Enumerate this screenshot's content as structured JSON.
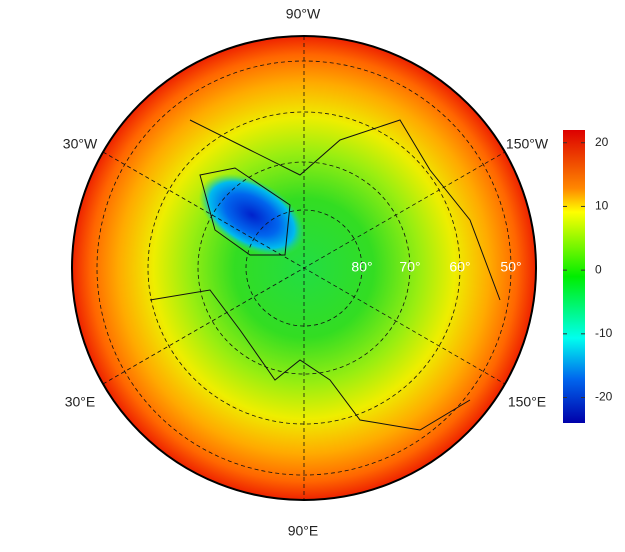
{
  "longitude_labels": [
    "90°W",
    "30°W",
    "150°W",
    "30°E",
    "150°E",
    "90°E"
  ],
  "latitude_labels": [
    "80°",
    "70°",
    "60°",
    "50°"
  ],
  "colorbar": {
    "ylim": [
      -24,
      22
    ],
    "yticks": [
      -20,
      -10,
      0,
      10,
      20
    ]
  }
}
